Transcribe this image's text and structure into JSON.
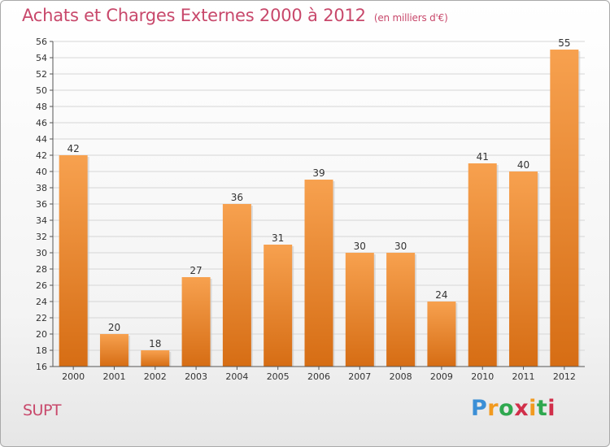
{
  "title": "Achats et Charges Externes 2000 à 2012",
  "subtitle": "(en milliers d'€)",
  "commune": "SUPT",
  "logo": {
    "letters": [
      "P",
      "r",
      "o",
      "x",
      "i",
      "t",
      "i"
    ],
    "colors": [
      "#3b8fd6",
      "#f29a1f",
      "#2fa84f",
      "#d12f4a",
      "#f29a1f",
      "#2fa84f",
      "#d12f4a"
    ]
  },
  "colors": {
    "bar_top": "#f7a14f",
    "bar_bottom": "#d66d14",
    "title": "#c8486b",
    "grid": "#d6d6d6"
  },
  "chart_data": {
    "type": "bar",
    "categories": [
      "2000",
      "2001",
      "2002",
      "2003",
      "2004",
      "2005",
      "2006",
      "2007",
      "2008",
      "2009",
      "2010",
      "2011",
      "2012"
    ],
    "values": [
      42,
      20,
      18,
      27,
      36,
      31,
      39,
      30,
      30,
      24,
      41,
      40,
      55
    ],
    "ylim": [
      16,
      56
    ],
    "yticks": [
      16,
      18,
      20,
      22,
      24,
      26,
      28,
      30,
      32,
      34,
      36,
      38,
      40,
      42,
      44,
      46,
      48,
      50,
      52,
      54,
      56
    ],
    "grid": true,
    "data_labels": true
  }
}
